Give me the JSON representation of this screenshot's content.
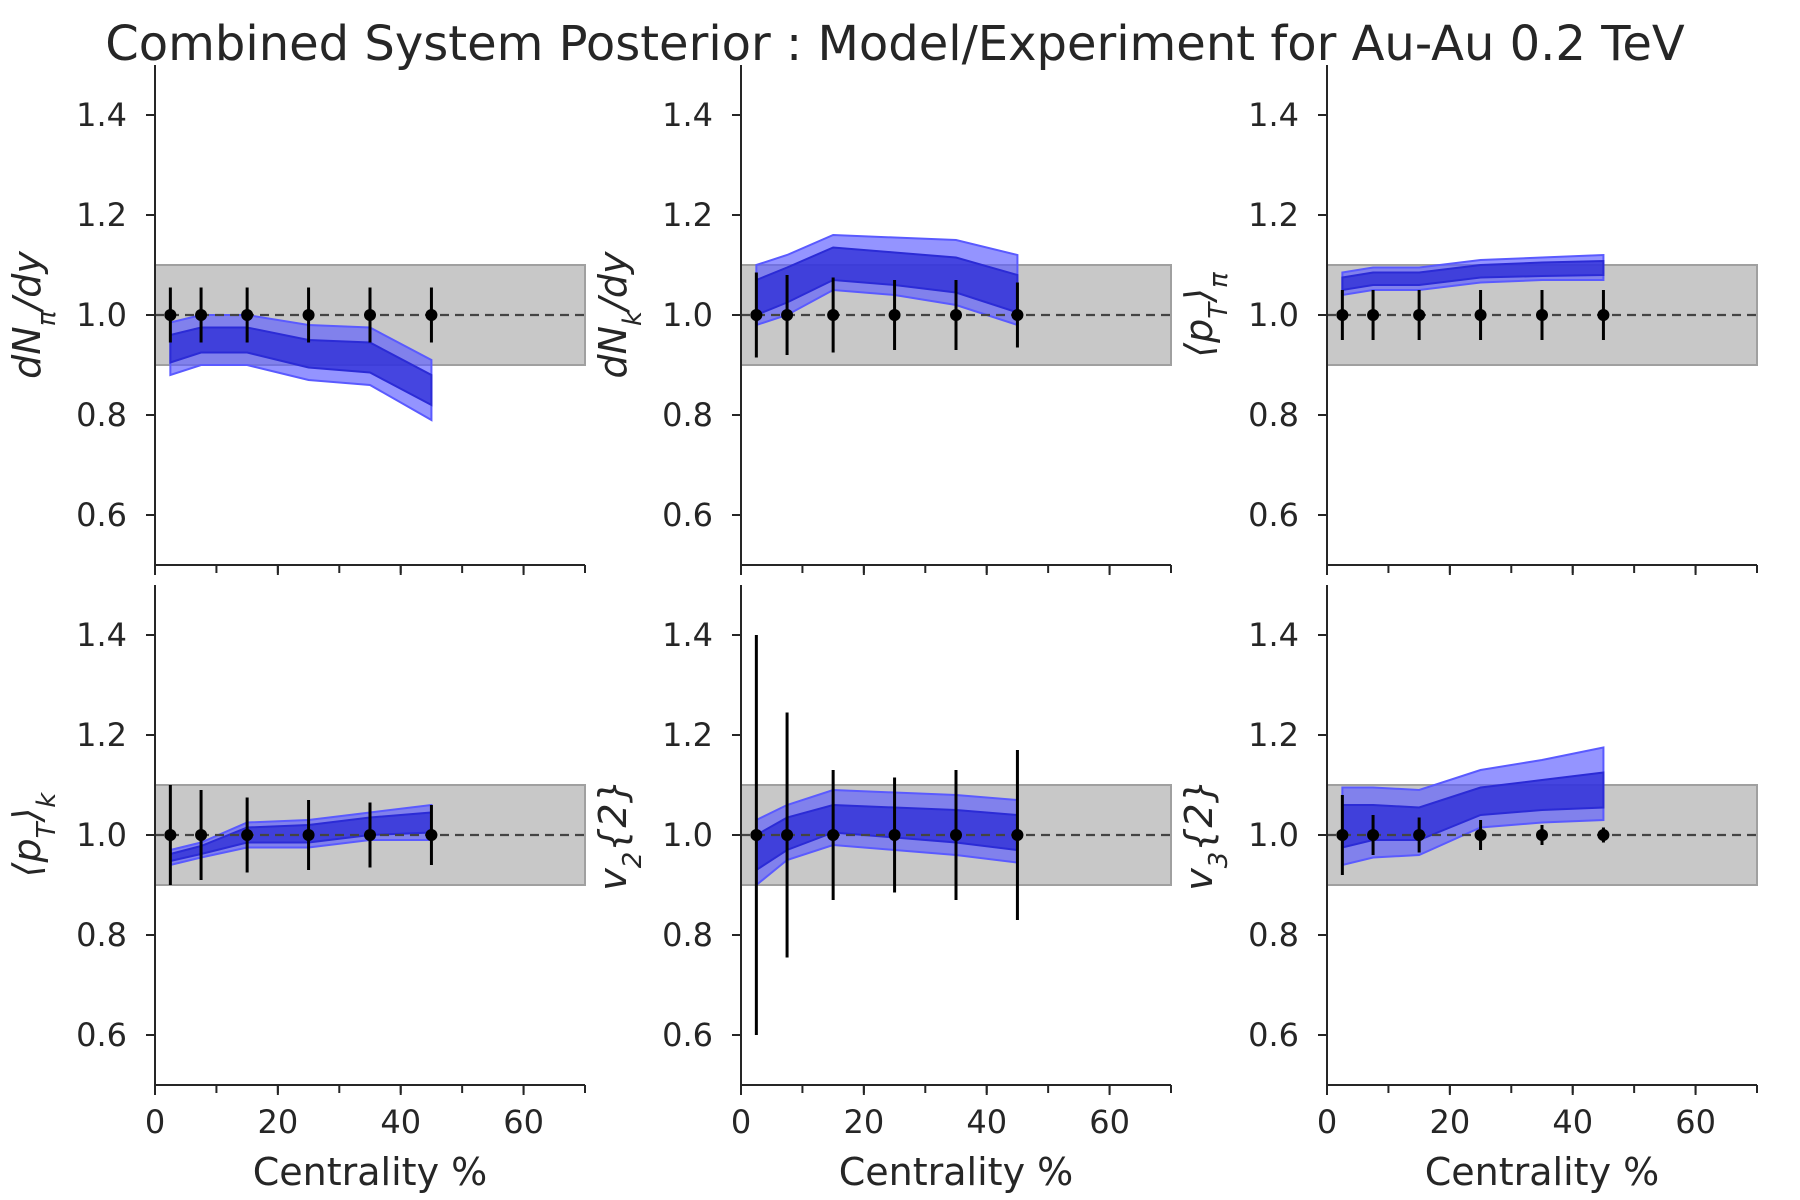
{
  "title": "Combined System Posterior : Model/Experiment for Au-Au 0.2 TeV",
  "colors": {
    "band_outer": "#5a5aff",
    "band_inner": "#2b2bd6",
    "exp_band": "#c8c8c8",
    "point": "#000000",
    "reference_line": "#444444"
  },
  "chart_data": [
    {
      "type": "line",
      "ylabel_main": "dN",
      "ylabel_sub": "π",
      "ylabel_tail": "/dy",
      "xlabel": "",
      "xlim": [
        0,
        70
      ],
      "ylim": [
        0.5,
        1.5
      ],
      "xticks": [
        0,
        20,
        40,
        60
      ],
      "yticks": [
        0.6,
        0.8,
        1.0,
        1.2,
        1.4
      ],
      "experiment_band": [
        0.9,
        1.1
      ],
      "x": [
        2.5,
        7.5,
        15,
        25,
        35,
        45
      ],
      "band_x": [
        2.5,
        7.5,
        15,
        25,
        35,
        45
      ],
      "band_outer_lo": [
        0.88,
        0.9,
        0.9,
        0.87,
        0.86,
        0.79
      ],
      "band_outer_hi": [
        0.985,
        1.0,
        1.0,
        0.98,
        0.975,
        0.91
      ],
      "band_inner_lo": [
        0.905,
        0.925,
        0.925,
        0.895,
        0.885,
        0.82
      ],
      "band_inner_hi": [
        0.96,
        0.975,
        0.975,
        0.95,
        0.945,
        0.88
      ],
      "points_y": [
        1.0,
        1.0,
        1.0,
        1.0,
        1.0,
        1.0
      ],
      "points_err": [
        0.055,
        0.055,
        0.055,
        0.055,
        0.055,
        0.055
      ]
    },
    {
      "type": "line",
      "ylabel_main": "dN",
      "ylabel_sub": "k",
      "ylabel_tail": "/dy",
      "xlabel": "",
      "xlim": [
        0,
        70
      ],
      "ylim": [
        0.5,
        1.5
      ],
      "xticks": [
        0,
        20,
        40,
        60
      ],
      "yticks": [
        0.6,
        0.8,
        1.0,
        1.2,
        1.4
      ],
      "experiment_band": [
        0.9,
        1.1
      ],
      "x": [
        2.5,
        7.5,
        15,
        25,
        35,
        45
      ],
      "band_x": [
        2.5,
        7.5,
        15,
        25,
        35,
        45
      ],
      "band_outer_lo": [
        0.98,
        1.0,
        1.05,
        1.04,
        1.02,
        0.98
      ],
      "band_outer_hi": [
        1.1,
        1.12,
        1.16,
        1.155,
        1.15,
        1.12
      ],
      "band_inner_lo": [
        1.0,
        1.025,
        1.07,
        1.06,
        1.045,
        1.005
      ],
      "band_inner_hi": [
        1.07,
        1.095,
        1.135,
        1.125,
        1.115,
        1.08
      ],
      "points_y": [
        1.0,
        1.0,
        1.0,
        1.0,
        1.0,
        1.0
      ],
      "points_err": [
        0.085,
        0.08,
        0.075,
        0.07,
        0.07,
        0.065
      ]
    },
    {
      "type": "line",
      "ylabel_main": "⟨p",
      "ylabel_sub": "T",
      "ylabel_tail": "⟩",
      "ylabel_tail_sub": "π",
      "xlabel": "",
      "xlim": [
        0,
        70
      ],
      "ylim": [
        0.5,
        1.5
      ],
      "xticks": [
        0,
        20,
        40,
        60
      ],
      "yticks": [
        0.6,
        0.8,
        1.0,
        1.2,
        1.4
      ],
      "experiment_band": [
        0.9,
        1.1
      ],
      "x": [
        2.5,
        7.5,
        15,
        25,
        35,
        45
      ],
      "band_x": [
        2.5,
        7.5,
        15,
        25,
        35,
        45
      ],
      "band_outer_lo": [
        1.04,
        1.05,
        1.05,
        1.065,
        1.07,
        1.07
      ],
      "band_outer_hi": [
        1.085,
        1.095,
        1.095,
        1.11,
        1.115,
        1.12
      ],
      "band_inner_lo": [
        1.05,
        1.06,
        1.06,
        1.075,
        1.078,
        1.08
      ],
      "band_inner_hi": [
        1.075,
        1.085,
        1.085,
        1.1,
        1.105,
        1.108
      ],
      "points_y": [
        1.0,
        1.0,
        1.0,
        1.0,
        1.0,
        1.0
      ],
      "points_err": [
        0.05,
        0.05,
        0.05,
        0.05,
        0.05,
        0.05
      ]
    },
    {
      "type": "line",
      "ylabel_main": "⟨p",
      "ylabel_sub": "T",
      "ylabel_tail": "⟩",
      "ylabel_tail_sub": "k",
      "xlabel": "Centrality %",
      "xlim": [
        0,
        70
      ],
      "ylim": [
        0.5,
        1.5
      ],
      "xticks": [
        0,
        20,
        40,
        60
      ],
      "yticks": [
        0.6,
        0.8,
        1.0,
        1.2,
        1.4
      ],
      "experiment_band": [
        0.9,
        1.1
      ],
      "x": [
        2.5,
        7.5,
        15,
        25,
        35,
        45
      ],
      "band_x": [
        2.5,
        7.5,
        15,
        25,
        35,
        45
      ],
      "band_outer_lo": [
        0.94,
        0.955,
        0.975,
        0.975,
        0.99,
        0.99
      ],
      "band_outer_hi": [
        0.97,
        0.985,
        1.025,
        1.03,
        1.045,
        1.06
      ],
      "band_inner_lo": [
        0.948,
        0.962,
        0.985,
        0.985,
        1.0,
        1.005
      ],
      "band_inner_hi": [
        0.962,
        0.978,
        1.015,
        1.02,
        1.035,
        1.045
      ],
      "points_y": [
        1.0,
        1.0,
        1.0,
        1.0,
        1.0,
        1.0
      ],
      "points_err": [
        0.1,
        0.09,
        0.075,
        0.07,
        0.065,
        0.06
      ]
    },
    {
      "type": "line",
      "ylabel_main": "v",
      "ylabel_sub": "2",
      "ylabel_tail": "{2}",
      "xlabel": "Centrality %",
      "xlim": [
        0,
        70
      ],
      "ylim": [
        0.5,
        1.5
      ],
      "xticks": [
        0,
        20,
        40,
        60
      ],
      "yticks": [
        0.6,
        0.8,
        1.0,
        1.2,
        1.4
      ],
      "experiment_band": [
        0.9,
        1.1
      ],
      "x": [
        2.5,
        7.5,
        15,
        25,
        35,
        45
      ],
      "band_x": [
        2.5,
        7.5,
        15,
        25,
        35,
        45
      ],
      "band_outer_lo": [
        0.9,
        0.95,
        0.98,
        0.97,
        0.96,
        0.945
      ],
      "band_outer_hi": [
        1.03,
        1.06,
        1.09,
        1.085,
        1.08,
        1.07
      ],
      "band_inner_lo": [
        0.93,
        0.97,
        1.005,
        0.995,
        0.985,
        0.97
      ],
      "band_inner_hi": [
        1.0,
        1.035,
        1.06,
        1.055,
        1.05,
        1.04
      ],
      "points_y": [
        1.0,
        1.0,
        1.0,
        1.0,
        1.0,
        1.0
      ],
      "points_err": [
        0.4,
        0.245,
        0.13,
        0.115,
        0.13,
        0.17
      ]
    },
    {
      "type": "line",
      "ylabel_main": "v",
      "ylabel_sub": "3",
      "ylabel_tail": "{2}",
      "xlabel": "Centrality %",
      "xlim": [
        0,
        70
      ],
      "ylim": [
        0.5,
        1.5
      ],
      "xticks": [
        0,
        20,
        40,
        60
      ],
      "yticks": [
        0.6,
        0.8,
        1.0,
        1.2,
        1.4
      ],
      "experiment_band": [
        0.9,
        1.1
      ],
      "x": [
        2.5,
        7.5,
        15,
        25,
        35,
        45
      ],
      "band_x": [
        2.5,
        7.5,
        15,
        25,
        35,
        45
      ],
      "band_outer_lo": [
        0.94,
        0.955,
        0.96,
        1.015,
        1.025,
        1.03
      ],
      "band_outer_hi": [
        1.095,
        1.095,
        1.09,
        1.13,
        1.15,
        1.175
      ],
      "band_inner_lo": [
        0.975,
        0.99,
        0.99,
        1.04,
        1.05,
        1.055
      ],
      "band_inner_hi": [
        1.06,
        1.06,
        1.055,
        1.095,
        1.11,
        1.125
      ],
      "points_y": [
        1.0,
        1.0,
        1.0,
        1.0,
        1.0,
        1.0
      ],
      "points_err": [
        0.08,
        0.04,
        0.035,
        0.03,
        0.02,
        0.015
      ]
    }
  ]
}
